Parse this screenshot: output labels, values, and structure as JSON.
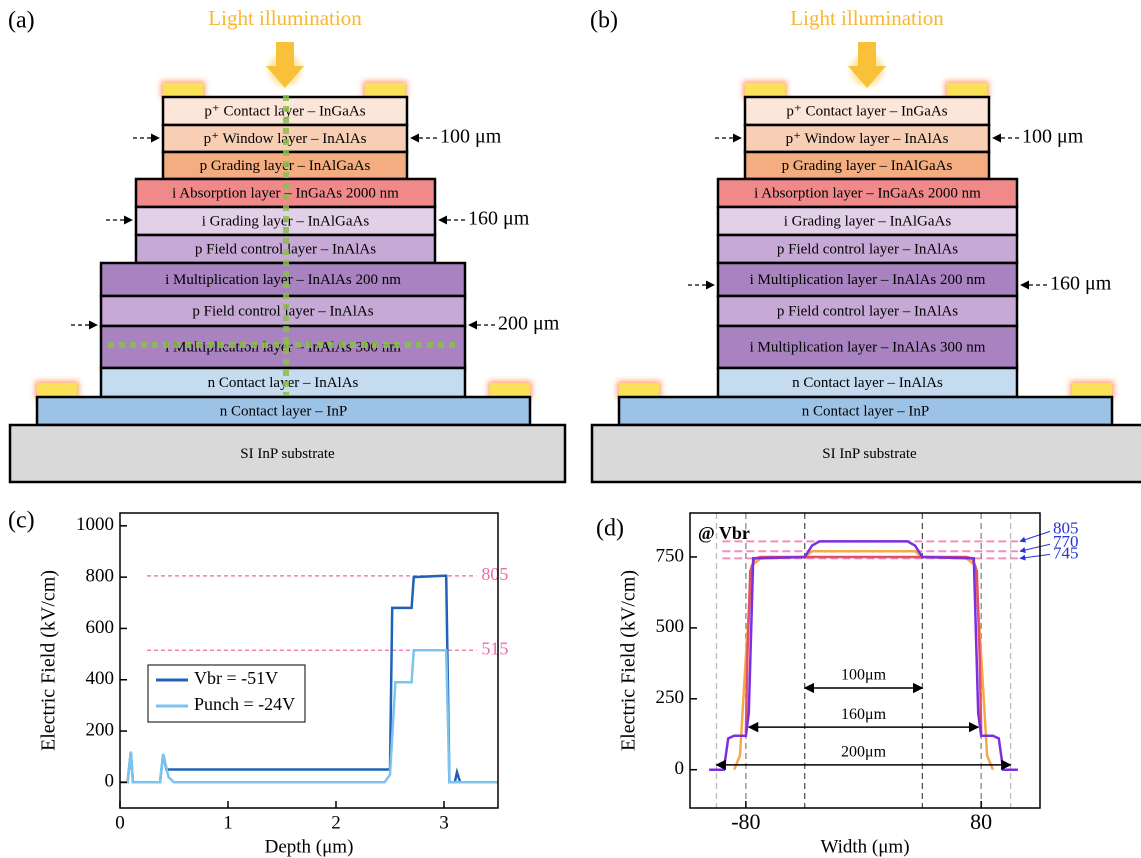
{
  "diagrams": [
    {
      "panel": "(a)",
      "illumination": "Light illumination",
      "layers": [
        "p⁺ Contact layer – InGaAs",
        "p⁺ Window layer – InAlAs",
        "p Grading layer – InAlGaAs",
        "i Absorption layer – InGaAs 2000 nm",
        "i Grading layer – InAlGaAs",
        "p Field control layer – InAlAs",
        "i Multiplication layer – InAlAs 200 nm",
        "p Field control layer – InAlAs",
        "i Multiplication layer – InAlAs 300 nm",
        "n Contact layer – InAlAs",
        "n Contact layer – InP",
        "SI InP substrate"
      ],
      "dimensions": [
        "100 μm",
        "160 μm",
        "200 μm"
      ]
    },
    {
      "panel": "(b)",
      "illumination": "Light illumination",
      "layers": [
        "p⁺ Contact layer – InGaAs",
        "p⁺ Window layer – InAlAs",
        "p Grading layer – InAlGaAs",
        "i Absorption layer – InGaAs 2000 nm",
        "i Grading layer – InAlGaAs",
        "p Field control layer – InAlAs",
        "i Multiplication layer – InAlAs 200 nm",
        "p Field control layer – InAlAs",
        "i Multiplication layer – InAlAs 300 nm",
        "n Contact layer – InAlAs",
        "n Contact layer – InP",
        "SI InP substrate"
      ],
      "dimensions": [
        "100 μm",
        "160 μm"
      ]
    }
  ],
  "chart_data": [
    {
      "type": "line",
      "panel": "(c)",
      "x_label": "Depth (μm)",
      "y_label": "Electric Field (kV/cm)",
      "xlim": [
        0,
        3.5
      ],
      "xticks": [
        0,
        1,
        2,
        3
      ],
      "ylim": [
        -100,
        1050
      ],
      "yticks": [
        0,
        200,
        400,
        600,
        800,
        1000
      ],
      "hlines": [
        805,
        515
      ],
      "legend": "lower-left",
      "series": [
        {
          "name": "Vbr = -51V",
          "color": "#1f63b8",
          "x": [
            0,
            0.07,
            0.1,
            0.12,
            0.37,
            0.4,
            0.43,
            2.45,
            2.5,
            2.52,
            2.55,
            2.7,
            2.72,
            3.0,
            3.02,
            3.05,
            3.1,
            3.12,
            3.15,
            3.5
          ],
          "values": [
            0,
            0,
            120,
            0,
            0,
            110,
            50,
            50,
            50,
            680,
            680,
            680,
            800,
            805,
            805,
            0,
            0,
            40,
            0,
            0
          ]
        },
        {
          "name": "Punch = -24V",
          "color": "#7cc3f0",
          "x": [
            0,
            0.07,
            0.1,
            0.12,
            0.37,
            0.4,
            0.45,
            0.5,
            2.45,
            2.5,
            2.55,
            2.7,
            2.72,
            3.0,
            3.02,
            3.05,
            3.5
          ],
          "values": [
            0,
            0,
            120,
            0,
            0,
            110,
            20,
            0,
            0,
            30,
            390,
            390,
            515,
            515,
            515,
            0,
            0
          ]
        }
      ]
    },
    {
      "type": "line",
      "panel": "(d)",
      "annotation": "@ Vbr",
      "x_label": "Width (μm)",
      "y_label": "Electric Field (kV/cm)",
      "xlim": [
        -118,
        120
      ],
      "xticks": [
        -80,
        80
      ],
      "ylim": [
        -135,
        905
      ],
      "yticks": [
        0,
        250,
        500,
        750
      ],
      "hlines": [
        805,
        770,
        745
      ],
      "vlines": [
        -100,
        -80,
        -40,
        40,
        80,
        100
      ],
      "spans": [
        {
          "label": "100μm",
          "from": -40,
          "to": 40,
          "y": 288
        },
        {
          "label": "160μm",
          "from": -78,
          "to": 78,
          "y": 150
        },
        {
          "label": "200μm",
          "from": -100,
          "to": 100,
          "y": 17
        }
      ],
      "series": [
        {
          "color": "#f5a94a",
          "x": [
            -88,
            -84,
            -80,
            -76,
            -70,
            -40,
            -35,
            35,
            40,
            70,
            76,
            80,
            84,
            88
          ],
          "values": [
            0,
            50,
            400,
            720,
            745,
            750,
            770,
            770,
            750,
            745,
            720,
            400,
            50,
            0
          ]
        },
        {
          "color": "#e0506a",
          "x": [
            -80,
            -79,
            -77,
            -74,
            -70,
            70,
            74,
            77,
            79,
            80
          ],
          "values": [
            130,
            400,
            700,
            745,
            750,
            750,
            745,
            700,
            400,
            130
          ]
        },
        {
          "color": "#7b2fe0",
          "x": [
            -105,
            -95,
            -92,
            -88,
            -80,
            -78,
            -75,
            -40,
            -35,
            -30,
            30,
            35,
            40,
            75,
            78,
            80,
            88,
            92,
            95,
            105
          ],
          "values": [
            0,
            0,
            110,
            120,
            120,
            200,
            745,
            750,
            790,
            805,
            805,
            790,
            750,
            745,
            200,
            120,
            120,
            110,
            0,
            0
          ]
        }
      ]
    }
  ]
}
